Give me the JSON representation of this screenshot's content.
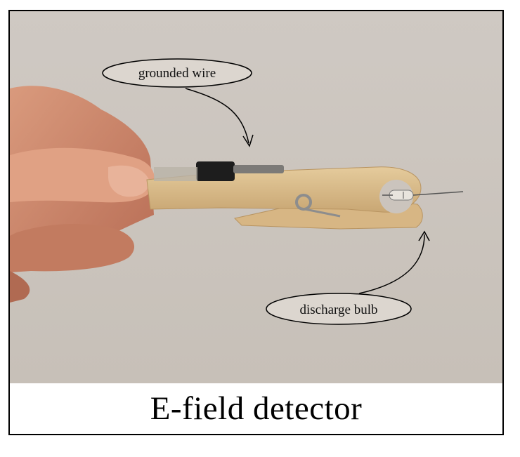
{
  "caption": "E-field detector",
  "annotations": {
    "top": "grounded wire",
    "bottom": "discharge bulb"
  },
  "colors": {
    "background": "#ccc6bf",
    "wood": "#d8b987",
    "skin": "#d18a6d"
  }
}
